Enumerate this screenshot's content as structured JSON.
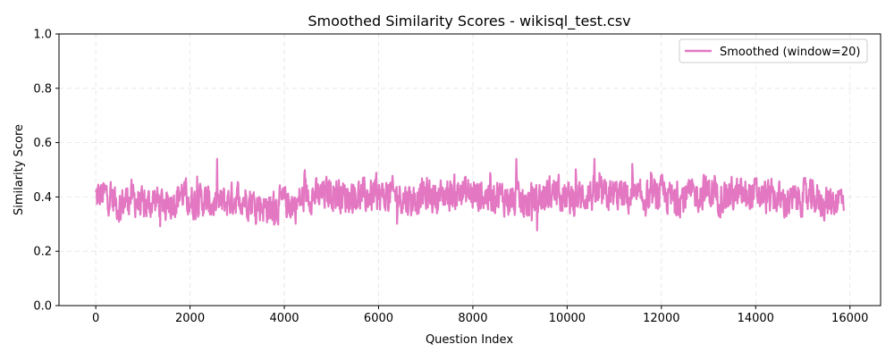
{
  "chart_data": {
    "type": "line",
    "title": "Smoothed Similarity Scores - wikisql_test.csv",
    "xlabel": "Question Index",
    "ylabel": "Similarity Score",
    "xlim": [
      -780,
      16650
    ],
    "ylim": [
      0,
      1
    ],
    "xticks": [
      0,
      2000,
      4000,
      6000,
      8000,
      10000,
      12000,
      14000,
      16000
    ],
    "yticks": [
      0.0,
      0.2,
      0.4,
      0.6,
      0.8,
      1.0
    ],
    "xtick_labels": [
      "0",
      "2000",
      "4000",
      "6000",
      "8000",
      "10000",
      "12000",
      "14000",
      "16000"
    ],
    "ytick_labels": [
      "0.0",
      "0.2",
      "0.4",
      "0.6",
      "0.8",
      "1.0"
    ],
    "grid": true,
    "legend_position": "top-right",
    "series": [
      {
        "name": "Smoothed (window=20)",
        "color": "#e377c2",
        "x_start": 0,
        "x_end": 15870,
        "mean": 0.395,
        "x_points": [
          0,
          250,
          500,
          750,
          900,
          1000,
          1250,
          1500,
          1750,
          1800,
          2000,
          2250,
          2500,
          2750,
          3000,
          3250,
          3500,
          3750,
          4000,
          4250,
          4300,
          4500,
          4750,
          5000,
          5200,
          5250,
          5500,
          5750,
          5950,
          6000,
          6250,
          6500,
          6750,
          7000,
          7250,
          7500,
          7750,
          8000,
          8250,
          8500,
          8750,
          9000,
          9100,
          9250,
          9500,
          9750,
          10000,
          10250,
          10500,
          10750,
          11000,
          11250,
          11500,
          11750,
          12000,
          12250,
          12500,
          12750,
          13000,
          13100,
          13250,
          13500,
          13750,
          14000,
          14250,
          14500,
          14750,
          15000,
          15250,
          15500,
          15750,
          15870
        ],
        "values": [
          0.4,
          0.41,
          0.37,
          0.4,
          0.38,
          0.36,
          0.39,
          0.37,
          0.4,
          0.42,
          0.38,
          0.39,
          0.37,
          0.38,
          0.4,
          0.39,
          0.37,
          0.36,
          0.38,
          0.37,
          0.38,
          0.41,
          0.4,
          0.42,
          0.41,
          0.4,
          0.41,
          0.4,
          0.41,
          0.4,
          0.41,
          0.4,
          0.39,
          0.41,
          0.4,
          0.41,
          0.42,
          0.41,
          0.4,
          0.41,
          0.39,
          0.38,
          0.37,
          0.39,
          0.4,
          0.42,
          0.39,
          0.4,
          0.41,
          0.4,
          0.41,
          0.4,
          0.39,
          0.4,
          0.41,
          0.39,
          0.4,
          0.41,
          0.42,
          0.41,
          0.4,
          0.41,
          0.4,
          0.41,
          0.4,
          0.39,
          0.38,
          0.4,
          0.39,
          0.38,
          0.39,
          0.4
        ]
      }
    ]
  }
}
